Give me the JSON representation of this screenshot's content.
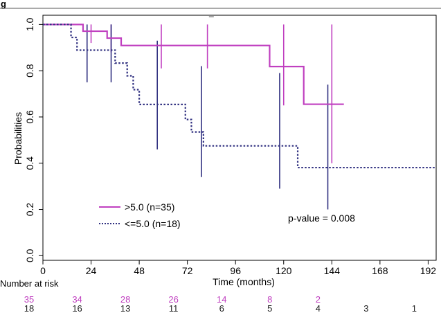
{
  "chart_data": {
    "type": "line",
    "header_fragment": "g",
    "title": "",
    "xlabel": "Time (months)",
    "ylabel": "Probabilities",
    "xlim": [
      0,
      196
    ],
    "ylim": [
      -0.02,
      1.04
    ],
    "x_ticks": [
      0,
      24,
      48,
      72,
      96,
      120,
      144,
      168,
      192
    ],
    "y_ticks": [
      0.0,
      0.2,
      0.4,
      0.6,
      0.8,
      1.0
    ],
    "y_tick_labels": [
      "0.0",
      "0.2",
      "0.4",
      "0.6",
      "0.8",
      "1.0"
    ],
    "grid": false,
    "legend_position": "bottom-left",
    "annotation": "p-value = 0.008",
    "series": [
      {
        "name": ">5.0 (n=35)",
        "color": "#c040c0",
        "dash": "solid",
        "steps": [
          [
            0,
            1.0
          ],
          [
            20,
            0.971
          ],
          [
            32,
            0.941
          ],
          [
            39,
            0.909
          ],
          [
            113,
            0.909
          ],
          [
            113,
            0.818
          ],
          [
            130,
            0.818
          ],
          [
            130,
            0.655
          ],
          [
            150,
            0.655
          ]
        ],
        "ci_bars": [
          {
            "x": 24,
            "low": 0.92,
            "high": 1.0
          },
          {
            "x": 34,
            "low": 0.88,
            "high": 1.0
          },
          {
            "x": 59,
            "low": 0.81,
            "high": 1.0
          },
          {
            "x": 82,
            "low": 0.81,
            "high": 1.0
          },
          {
            "x": 120,
            "low": 0.65,
            "high": 1.0
          },
          {
            "x": 144,
            "low": 0.4,
            "high": 1.0
          }
        ]
      },
      {
        "name": "<=5.0 (n=18)",
        "color": "#303080",
        "dash": "dotted",
        "steps": [
          [
            0,
            1.0
          ],
          [
            14,
            0.944
          ],
          [
            17,
            0.889
          ],
          [
            36,
            0.833
          ],
          [
            42,
            0.778
          ],
          [
            45,
            0.718
          ],
          [
            48,
            0.654
          ],
          [
            71,
            0.589
          ],
          [
            74,
            0.535
          ],
          [
            80,
            0.475
          ],
          [
            127,
            0.475
          ],
          [
            127,
            0.381
          ],
          [
            196,
            0.381
          ]
        ],
        "ci_bars": [
          {
            "x": 22,
            "low": 0.75,
            "high": 1.0
          },
          {
            "x": 34,
            "low": 0.75,
            "high": 1.0
          },
          {
            "x": 57,
            "low": 0.46,
            "high": 0.93
          },
          {
            "x": 79,
            "low": 0.34,
            "high": 0.82
          },
          {
            "x": 118,
            "low": 0.29,
            "high": 0.79
          },
          {
            "x": 142,
            "low": 0.2,
            "high": 0.74
          }
        ]
      }
    ],
    "risk_table": {
      "title": "Number at risk",
      "x": [
        24,
        36,
        60,
        84,
        108,
        132,
        156,
        180,
        204
      ],
      "rows": [
        {
          "color": "#c040c0",
          "values": [
            "35",
            "34",
            "28",
            "26",
            "14",
            "8",
            "2",
            "",
            ""
          ]
        },
        {
          "color": "#202020",
          "values": [
            "18",
            "16",
            "13",
            "11",
            "6",
            "5",
            "4",
            "3",
            "1"
          ]
        }
      ]
    }
  }
}
